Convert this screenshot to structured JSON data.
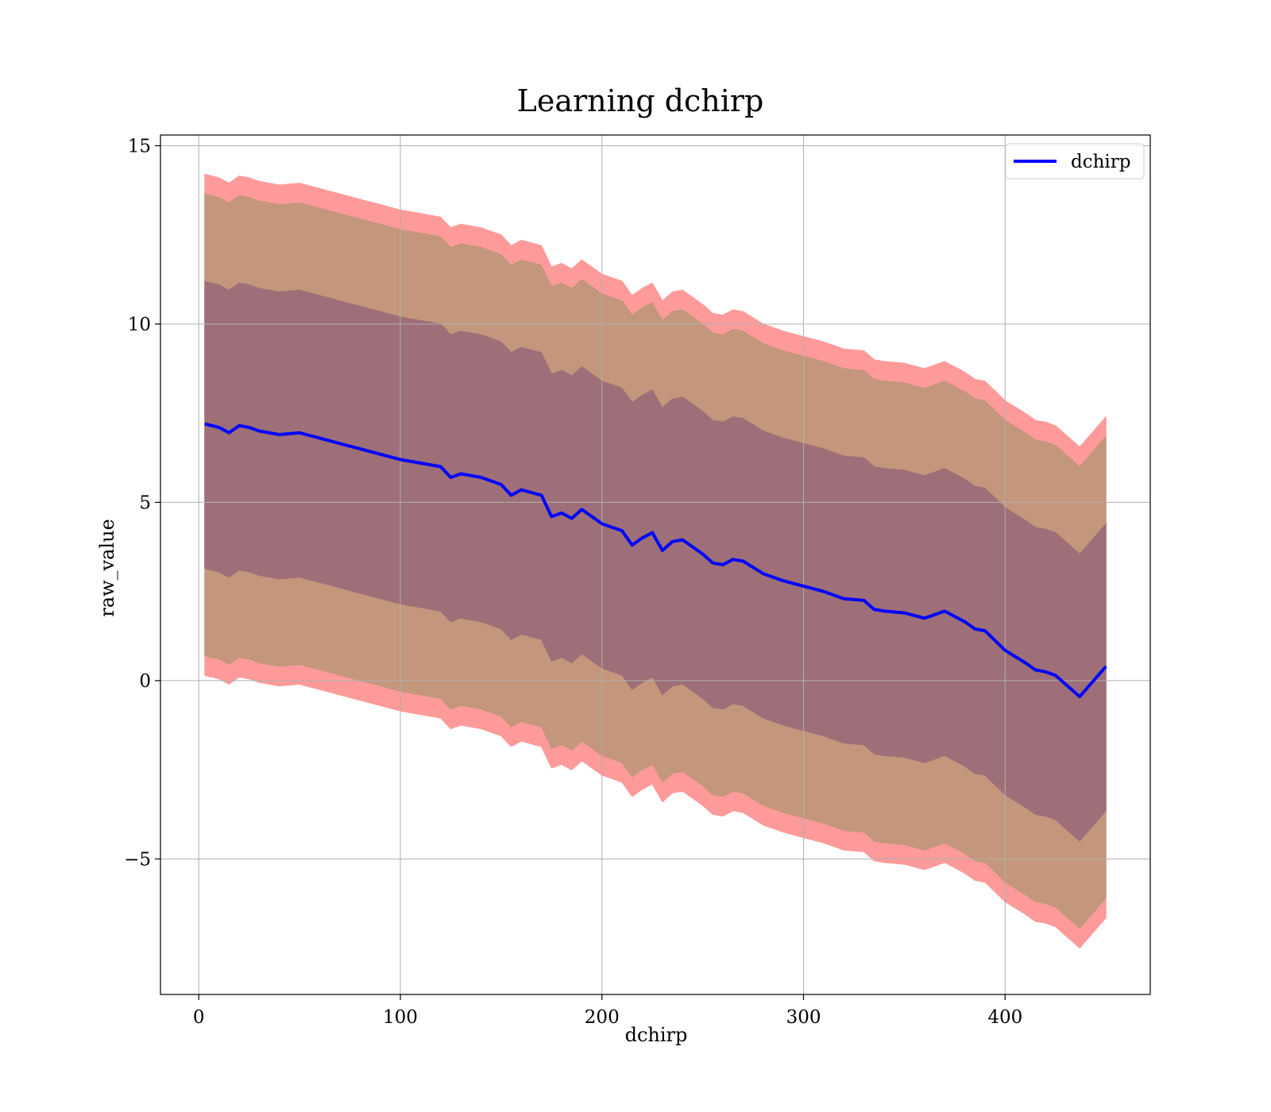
{
  "chart_data": {
    "type": "line",
    "title": "Learning dchirp",
    "xlabel": "dchirp",
    "ylabel": "raw_value",
    "xlim": [
      -19,
      472
    ],
    "ylim": [
      -8.8,
      15.3
    ],
    "xticks": [
      0,
      100,
      200,
      300,
      400
    ],
    "yticks": [
      15,
      10,
      5,
      0,
      -5
    ],
    "xtick_labels": [
      "0",
      "100",
      "200",
      "300",
      "400"
    ],
    "ytick_labels": [
      "15",
      "10",
      "5",
      "0",
      "−5"
    ],
    "grid": true,
    "legend_position": "top-right",
    "series": [
      {
        "name": "dchirp",
        "color": "#0000ff",
        "x": [
          3,
          10,
          15,
          20,
          25,
          30,
          40,
          50,
          60,
          70,
          80,
          90,
          100,
          110,
          120,
          125,
          130,
          140,
          150,
          155,
          160,
          170,
          175,
          180,
          185,
          190,
          195,
          200,
          210,
          215,
          220,
          225,
          230,
          235,
          240,
          250,
          255,
          260,
          265,
          270,
          280,
          290,
          300,
          310,
          320,
          330,
          335,
          340,
          350,
          360,
          370,
          375,
          380,
          385,
          390,
          400,
          410,
          415,
          420,
          425,
          437,
          450
        ],
        "values": [
          7.2,
          7.1,
          6.95,
          7.15,
          7.1,
          7.0,
          6.9,
          6.95,
          6.8,
          6.65,
          6.5,
          6.35,
          6.2,
          6.1,
          6.0,
          5.7,
          5.8,
          5.7,
          5.5,
          5.2,
          5.35,
          5.2,
          4.6,
          4.7,
          4.55,
          4.8,
          4.6,
          4.4,
          4.2,
          3.8,
          4.0,
          4.15,
          3.65,
          3.9,
          3.95,
          3.55,
          3.3,
          3.25,
          3.4,
          3.35,
          3.0,
          2.8,
          2.65,
          2.5,
          2.3,
          2.25,
          2.0,
          1.95,
          1.9,
          1.75,
          1.95,
          1.8,
          1.65,
          1.45,
          1.4,
          0.85,
          0.5,
          0.3,
          0.25,
          0.15,
          -0.45,
          0.4
        ]
      }
    ],
    "bands": [
      {
        "color": "#ff9a9a",
        "upper_offset": 7.0,
        "lower_offset": 7.05
      },
      {
        "color": "#c4977c",
        "upper_offset": 6.45,
        "lower_offset": 6.5
      },
      {
        "color": "#9e6f78",
        "upper_offset": 4.0,
        "lower_offset": 4.05
      }
    ]
  }
}
